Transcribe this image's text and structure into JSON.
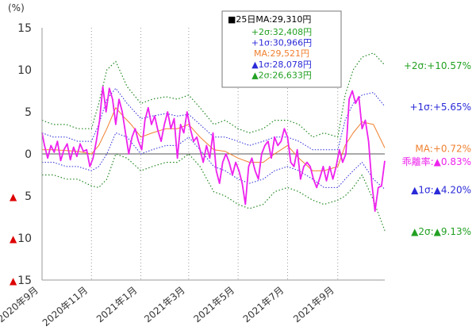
{
  "chart_data": {
    "type": "line",
    "unit_label": "(%)",
    "ylim": [
      -15,
      15
    ],
    "y_ticks": [
      {
        "value": 15,
        "label": "15",
        "neg": false
      },
      {
        "value": 10,
        "label": "10",
        "neg": false
      },
      {
        "value": 5,
        "label": "5",
        "neg": false
      },
      {
        "value": 0,
        "label": "0",
        "neg": false
      },
      {
        "value": -5,
        "label": "5",
        "neg": true
      },
      {
        "value": -10,
        "label": "10",
        "neg": true
      },
      {
        "value": -15,
        "label": "15",
        "neg": true
      }
    ],
    "neg_marker": "▲",
    "x_range": [
      "2020-09-01",
      "2021-10-29"
    ],
    "x_ticks": [
      {
        "date": "2020-09-01",
        "label": "2020年9月"
      },
      {
        "date": "2020-11-01",
        "label": "2020年11月"
      },
      {
        "date": "2021-01-01",
        "label": "2021年1月"
      },
      {
        "date": "2021-03-01",
        "label": "2021年3月"
      },
      {
        "date": "2021-05-01",
        "label": "2021年5月"
      },
      {
        "date": "2021-07-01",
        "label": "2021年7月"
      },
      {
        "date": "2021-09-01",
        "label": "2021年9月"
      }
    ],
    "grid": "vertical dotted at month ticks",
    "legend": {
      "placement": "top-center",
      "title": "■25日MA:29,310円",
      "entries": [
        {
          "text": "+2σ:32,408円",
          "color": "#22a022"
        },
        {
          "text": "+1σ:30,966円",
          "color": "#2a2ad8"
        },
        {
          "text": "MA:29,521円",
          "color": "#f08030"
        },
        {
          "text": "▲1σ:28,078円",
          "color": "#2a2ad8"
        },
        {
          "text": "▲2σ:26,633円",
          "color": "#22a022"
        }
      ]
    },
    "right_labels": [
      {
        "text": "+2σ:+10.57%",
        "color": "#22a022",
        "value": 10.57
      },
      {
        "text": "+1σ:+5.65%",
        "color": "#2a2ad8",
        "value": 5.65
      },
      {
        "text": "MA:+0.72%",
        "color": "#f08030",
        "value": 0.72
      },
      {
        "text": "乖離率:▲0.83%",
        "color": "#ee22ee",
        "value": -0.83
      },
      {
        "text": "▲1σ:▲4.20%",
        "color": "#2a2ad8",
        "value": -4.2
      },
      {
        "text": "▲2σ:▲9.13%",
        "color": "#22a022",
        "value": -9.13
      }
    ],
    "colors": {
      "deviation": "#ee22ee",
      "ma": "#f08030",
      "sigma1": "#2a2ad8",
      "sigma2": "#228822",
      "negative_tick": "#dd0000",
      "axis_text": "#333333"
    },
    "series": [
      {
        "key": "plus2",
        "x": [
          "2020-09-01",
          "2020-09-15",
          "2020-10-01",
          "2020-10-15",
          "2020-11-01",
          "2020-11-10",
          "2020-11-20",
          "2020-12-01",
          "2020-12-15",
          "2021-01-01",
          "2021-01-15",
          "2021-02-01",
          "2021-02-15",
          "2021-03-01",
          "2021-03-15",
          "2021-04-01",
          "2021-04-15",
          "2021-05-01",
          "2021-05-15",
          "2021-06-01",
          "2021-06-15",
          "2021-07-01",
          "2021-07-15",
          "2021-08-01",
          "2021-08-15",
          "2021-09-01",
          "2021-09-10",
          "2021-09-20",
          "2021-10-01",
          "2021-10-15",
          "2021-10-29"
        ],
        "values": [
          4,
          3.5,
          3.5,
          3,
          3,
          6,
          10,
          11,
          8,
          6,
          6.5,
          6.8,
          6.5,
          7,
          5.5,
          3.5,
          4,
          3,
          2.5,
          3,
          4,
          4,
          3.5,
          2,
          2.5,
          2,
          7,
          10,
          11.5,
          12,
          10.57
        ]
      },
      {
        "key": "plus1",
        "x": [
          "2020-09-01",
          "2020-09-15",
          "2020-10-01",
          "2020-10-15",
          "2020-11-01",
          "2020-11-10",
          "2020-11-20",
          "2020-12-01",
          "2020-12-15",
          "2021-01-01",
          "2021-01-15",
          "2021-02-01",
          "2021-02-15",
          "2021-03-01",
          "2021-03-15",
          "2021-04-01",
          "2021-04-15",
          "2021-05-01",
          "2021-05-15",
          "2021-06-01",
          "2021-06-15",
          "2021-07-01",
          "2021-07-15",
          "2021-08-01",
          "2021-08-15",
          "2021-09-01",
          "2021-09-10",
          "2021-09-20",
          "2021-10-01",
          "2021-10-15",
          "2021-10-29"
        ],
        "values": [
          2.5,
          2,
          2,
          1.5,
          1.5,
          3.5,
          6.5,
          7.8,
          6,
          4.2,
          4.5,
          4.8,
          4.5,
          4.7,
          3.5,
          2,
          2,
          1.5,
          1,
          1.5,
          2,
          2,
          1.5,
          0.5,
          0.5,
          0.5,
          4,
          6,
          7,
          7.3,
          5.65
        ]
      },
      {
        "key": "ma",
        "x": [
          "2020-09-01",
          "2020-09-15",
          "2020-10-01",
          "2020-10-15",
          "2020-11-01",
          "2020-11-10",
          "2020-11-20",
          "2020-12-01",
          "2020-12-10",
          "2020-12-20",
          "2021-01-01",
          "2021-01-15",
          "2021-02-01",
          "2021-02-15",
          "2021-03-01",
          "2021-03-15",
          "2021-04-01",
          "2021-04-15",
          "2021-05-01",
          "2021-05-15",
          "2021-06-01",
          "2021-06-15",
          "2021-07-01",
          "2021-07-15",
          "2021-08-01",
          "2021-08-15",
          "2021-09-01",
          "2021-09-10",
          "2021-09-20",
          "2021-10-01",
          "2021-10-15",
          "2021-10-29"
        ],
        "values": [
          0.5,
          0.5,
          0.4,
          0.3,
          0,
          1,
          3,
          5.5,
          4.5,
          3.5,
          2,
          2.5,
          3,
          3,
          3.5,
          2,
          0.5,
          0.3,
          -0.5,
          -1,
          -1,
          0,
          1,
          -0.5,
          -2,
          -2,
          -1.5,
          1,
          2.5,
          3.8,
          3.5,
          0.72
        ]
      },
      {
        "key": "minus1",
        "x": [
          "2020-09-01",
          "2020-09-15",
          "2020-10-01",
          "2020-10-15",
          "2020-11-01",
          "2020-11-10",
          "2020-11-20",
          "2020-12-01",
          "2020-12-15",
          "2021-01-01",
          "2021-01-15",
          "2021-02-01",
          "2021-02-15",
          "2021-03-01",
          "2021-03-15",
          "2021-04-01",
          "2021-04-15",
          "2021-05-01",
          "2021-05-15",
          "2021-06-01",
          "2021-06-15",
          "2021-07-01",
          "2021-07-15",
          "2021-08-01",
          "2021-08-15",
          "2021-09-01",
          "2021-09-10",
          "2021-09-20",
          "2021-10-01",
          "2021-10-15",
          "2021-10-29"
        ],
        "values": [
          -1,
          -1,
          -1.5,
          -1.5,
          -2,
          -1.5,
          0,
          2.5,
          2,
          0,
          0.5,
          1,
          1,
          2,
          0.5,
          -1.5,
          -2,
          -3,
          -3.5,
          -3,
          -2,
          -1.5,
          -2,
          -3,
          -4,
          -4,
          -3,
          -2,
          -1,
          -3,
          -4.2
        ]
      },
      {
        "key": "minus2",
        "x": [
          "2020-09-01",
          "2020-09-15",
          "2020-10-01",
          "2020-10-15",
          "2020-11-01",
          "2020-11-10",
          "2020-11-20",
          "2020-12-01",
          "2020-12-15",
          "2021-01-01",
          "2021-01-15",
          "2021-02-01",
          "2021-02-15",
          "2021-03-01",
          "2021-03-15",
          "2021-04-01",
          "2021-04-15",
          "2021-05-01",
          "2021-05-15",
          "2021-06-01",
          "2021-06-15",
          "2021-07-01",
          "2021-07-15",
          "2021-08-01",
          "2021-08-15",
          "2021-09-01",
          "2021-09-10",
          "2021-09-20",
          "2021-10-01",
          "2021-10-15",
          "2021-10-29"
        ],
        "values": [
          -2.5,
          -2.5,
          -3,
          -3,
          -3.8,
          -4,
          -3,
          0,
          -0.5,
          -2,
          -1.5,
          -1,
          -1,
          0,
          -1.5,
          -4.5,
          -5,
          -6,
          -6.5,
          -6,
          -4.5,
          -4,
          -4.5,
          -5.5,
          -6,
          -5.5,
          -5,
          -4,
          -2.5,
          -5.5,
          -9.13
        ]
      },
      {
        "key": "deviation",
        "x": [
          "2020-09-01",
          "2020-09-04",
          "2020-09-08",
          "2020-09-12",
          "2020-09-16",
          "2020-09-20",
          "2020-09-24",
          "2020-09-28",
          "2020-10-02",
          "2020-10-06",
          "2020-10-10",
          "2020-10-14",
          "2020-10-18",
          "2020-10-22",
          "2020-10-26",
          "2020-10-30",
          "2020-11-03",
          "2020-11-07",
          "2020-11-11",
          "2020-11-15",
          "2020-11-19",
          "2020-11-23",
          "2020-11-27",
          "2020-12-01",
          "2020-12-05",
          "2020-12-09",
          "2020-12-13",
          "2020-12-17",
          "2020-12-21",
          "2020-12-25",
          "2020-12-29",
          "2021-01-02",
          "2021-01-06",
          "2021-01-10",
          "2021-01-14",
          "2021-01-18",
          "2021-01-22",
          "2021-01-26",
          "2021-01-30",
          "2021-02-03",
          "2021-02-07",
          "2021-02-11",
          "2021-02-15",
          "2021-02-19",
          "2021-02-23",
          "2021-02-27",
          "2021-03-03",
          "2021-03-07",
          "2021-03-11",
          "2021-03-15",
          "2021-03-19",
          "2021-03-23",
          "2021-03-27",
          "2021-03-31",
          "2021-04-04",
          "2021-04-08",
          "2021-04-12",
          "2021-04-16",
          "2021-04-20",
          "2021-04-24",
          "2021-04-28",
          "2021-05-02",
          "2021-05-06",
          "2021-05-10",
          "2021-05-14",
          "2021-05-18",
          "2021-05-22",
          "2021-05-26",
          "2021-05-30",
          "2021-06-03",
          "2021-06-07",
          "2021-06-11",
          "2021-06-15",
          "2021-06-19",
          "2021-06-23",
          "2021-06-27",
          "2021-07-01",
          "2021-07-05",
          "2021-07-09",
          "2021-07-13",
          "2021-07-17",
          "2021-07-21",
          "2021-07-25",
          "2021-07-29",
          "2021-08-02",
          "2021-08-06",
          "2021-08-10",
          "2021-08-14",
          "2021-08-18",
          "2021-08-22",
          "2021-08-26",
          "2021-08-30",
          "2021-09-03",
          "2021-09-07",
          "2021-09-11",
          "2021-09-15",
          "2021-09-19",
          "2021-09-23",
          "2021-09-27",
          "2021-10-01",
          "2021-10-05",
          "2021-10-09",
          "2021-10-13",
          "2021-10-17",
          "2021-10-21",
          "2021-10-25",
          "2021-10-29"
        ],
        "values": [
          2.5,
          1,
          -0.5,
          1,
          0.2,
          1.5,
          -0.8,
          0.5,
          1.2,
          -0.7,
          0.8,
          -0.3,
          1.2,
          0.3,
          0.5,
          -1.5,
          -0.5,
          1.5,
          4,
          8,
          5,
          7.8,
          6.5,
          3.5,
          6.5,
          5,
          2.5,
          0,
          2,
          3,
          1.5,
          0.5,
          4,
          5.5,
          3.5,
          4.5,
          2.8,
          1.5,
          3.5,
          5,
          3,
          4.2,
          -0.5,
          3.5,
          2.5,
          5,
          3,
          1.5,
          2,
          0.5,
          -1,
          1,
          -0.5,
          2.5,
          -2,
          -3.5,
          -1,
          0,
          -1,
          -2.5,
          -1,
          -2,
          -3.5,
          -6,
          -1.5,
          -0.5,
          -2,
          -3,
          0,
          1,
          1.5,
          -0.5,
          2,
          1,
          1.5,
          3,
          2,
          -1,
          -1.5,
          0.5,
          -3,
          -1.5,
          -1,
          -1.5,
          -3,
          -4,
          -2.8,
          -1.5,
          -3.2,
          -1.5,
          -3,
          -1.5,
          0.5,
          -1,
          0,
          6.5,
          7.5,
          6,
          6.8,
          3,
          4,
          1.5,
          -3.5,
          -6.8,
          -4,
          -3.8,
          -0.83
        ]
      }
    ]
  }
}
